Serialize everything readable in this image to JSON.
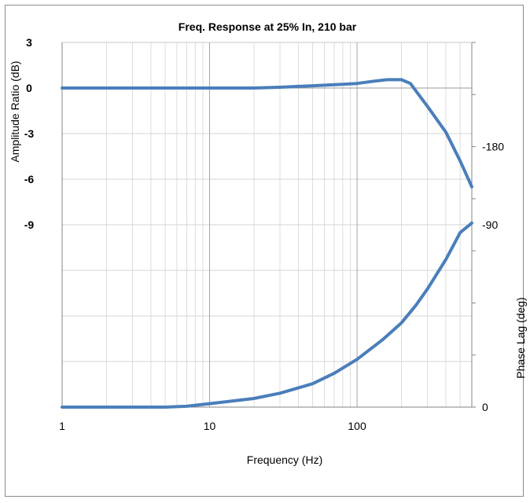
{
  "chart_data": {
    "type": "line",
    "title": "Freq. Response at 25% In, 210 bar",
    "xlabel": "Frequency (Hz)",
    "ylabel_left": "Amplitude Ratio (dB)",
    "ylabel_right": "Phase Lag (deg)",
    "x_scale": "log",
    "xlim": [
      1,
      600
    ],
    "x_ticks": [
      "1",
      "10",
      "100"
    ],
    "x_tick_values": [
      1,
      10,
      100
    ],
    "ylim_left": [
      -21,
      3
    ],
    "y_ticks_left": [
      "3",
      "0",
      "-3",
      "-6",
      "-9"
    ],
    "y_tick_values_left": [
      3,
      0,
      -3,
      -6,
      -9
    ],
    "ylim_right": [
      0,
      420
    ],
    "y_ticks_right": [
      "-180",
      "-90",
      "0"
    ],
    "y_tick_values_right": [
      300,
      210,
      0
    ],
    "grid": true,
    "line_color": "#4a7ebb",
    "series": [
      {
        "axis": "left",
        "x": [
          1,
          2,
          5,
          10,
          20,
          30,
          50,
          80,
          100,
          130,
          160,
          200,
          230,
          260,
          300,
          400,
          500,
          600
        ],
        "y": [
          0,
          0,
          0,
          0,
          0,
          0.05,
          0.15,
          0.25,
          0.3,
          0.45,
          0.55,
          0.55,
          0.3,
          -0.4,
          -1.2,
          -2.9,
          -4.8,
          -6.5
        ]
      },
      {
        "axis": "right",
        "x": [
          1,
          2,
          5,
          7,
          10,
          20,
          30,
          50,
          70,
          100,
          150,
          200,
          250,
          300,
          400,
          500,
          600
        ],
        "y": [
          0,
          0,
          0,
          1,
          4,
          10,
          16,
          27,
          39,
          55,
          78,
          97,
          117,
          136,
          170,
          201,
          212
        ]
      }
    ]
  }
}
